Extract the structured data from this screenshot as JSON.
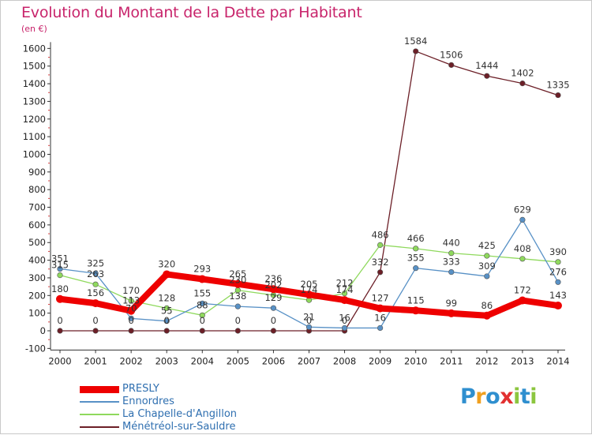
{
  "chart_data": {
    "type": "line",
    "title": "Evolution du Montant de la Dette par Habitant",
    "subtitle": "(en €)",
    "ylim": [
      -100,
      1600
    ],
    "yticks": [
      -100,
      0,
      100,
      200,
      300,
      400,
      500,
      600,
      700,
      800,
      900,
      1000,
      1100,
      1200,
      1300,
      1400,
      1500,
      1600
    ],
    "grid": false,
    "legend_position": "bottom-left",
    "categories": [
      "2000",
      "2001",
      "2002",
      "2003",
      "2004",
      "2005",
      "2006",
      "2007",
      "2008",
      "2009",
      "2010",
      "2011",
      "2012",
      "2013",
      "2014"
    ],
    "series": [
      {
        "name": "PRESLY",
        "color": "#ee0000",
        "values": [
          180,
          156,
          113,
          320,
          293,
          265,
          236,
          205,
          174,
          127,
          115,
          99,
          86,
          172,
          143
        ]
      },
      {
        "name": "Ennordres",
        "color": "#5891c6",
        "values": [
          351,
          325,
          70,
          55,
          155,
          138,
          129,
          21,
          16,
          16,
          355,
          333,
          309,
          629,
          276
        ]
      },
      {
        "name": "La Chapelle-d'Angillon",
        "color": "#8fd95d",
        "values": [
          315,
          263,
          170,
          128,
          88,
          230,
          202,
          174,
          212,
          486,
          466,
          440,
          425,
          408,
          390
        ]
      },
      {
        "name": "Ménétréol-sur-Sauldre",
        "color": "#6c1f27",
        "values": [
          0,
          0,
          0,
          0,
          0,
          0,
          0,
          0,
          0,
          332,
          1584,
          1506,
          1444,
          1402,
          1335
        ]
      }
    ],
    "data_labels": [
      {
        "series": "PRESLY",
        "values": [
          "180",
          "156",
          "113",
          "320",
          "293",
          "265",
          "236",
          "205",
          "174",
          "127",
          "115",
          "99",
          "86",
          "172",
          "143"
        ]
      },
      {
        "series": "Ennordres",
        "values": [
          "351",
          "325",
          "70",
          "55",
          "155",
          "138",
          "129",
          "21",
          "16",
          "16",
          "355",
          "333",
          "309",
          "629",
          "276"
        ]
      },
      {
        "series": "La Chapelle-d'Angillon",
        "values": [
          "315",
          "263",
          "170",
          "128",
          "88",
          "230",
          "202",
          "174",
          "212",
          "486",
          "466",
          "440",
          "425",
          "408",
          "390"
        ]
      },
      {
        "series": "Ménétréol-sur-Sauldre",
        "values": [
          "0",
          "0",
          "0",
          "0",
          "0",
          "0",
          "0",
          "0",
          "0",
          "332",
          "1584",
          "1506",
          "1444",
          "1402",
          "1335"
        ]
      }
    ]
  },
  "logo": {
    "letters": [
      {
        "ch": "P",
        "color": "#2f8fcf"
      },
      {
        "ch": "r",
        "color": "#f0a020"
      },
      {
        "ch": "o",
        "color": "#2f8fcf"
      },
      {
        "ch": "x",
        "color": "#e23030"
      },
      {
        "ch": "i",
        "color": "#8cc63f"
      },
      {
        "ch": "t",
        "color": "#2f8fcf"
      },
      {
        "ch": "i",
        "color": "#8cc63f"
      }
    ]
  }
}
